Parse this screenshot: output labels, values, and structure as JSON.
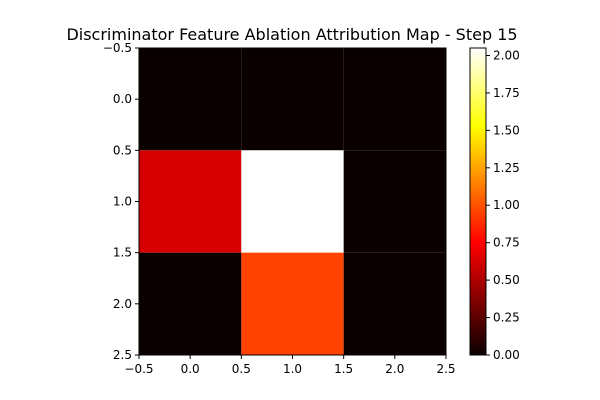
{
  "chart_data": {
    "type": "heatmap",
    "title": "Discriminator Feature Ablation Attribution Map - Step 15",
    "xlabel": "",
    "ylabel": "",
    "colormap": "hot",
    "x_ticks": [
      "−0.5",
      "0.0",
      "0.5",
      "1.0",
      "1.5",
      "2.0",
      "2.5"
    ],
    "y_ticks": [
      "−0.5",
      "0.0",
      "0.5",
      "1.0",
      "1.5",
      "2.0",
      "2.5"
    ],
    "xlim": [
      -0.5,
      2.5
    ],
    "ylim": [
      2.5,
      -0.5
    ],
    "rows": [
      0,
      1,
      2
    ],
    "cols": [
      0,
      1,
      2
    ],
    "values": [
      [
        0.0,
        0.0,
        0.0
      ],
      [
        0.6,
        2.05,
        0.0
      ],
      [
        0.0,
        0.95,
        0.0
      ]
    ],
    "vmin": 0.0,
    "vmax": 2.05,
    "colorbar_ticks": [
      "0.00",
      "0.25",
      "0.50",
      "0.75",
      "1.00",
      "1.25",
      "1.50",
      "1.75",
      "2.00"
    ],
    "colorbar_tick_values": [
      0.0,
      0.25,
      0.5,
      0.75,
      1.0,
      1.25,
      1.5,
      1.75,
      2.0
    ],
    "grid": false
  }
}
